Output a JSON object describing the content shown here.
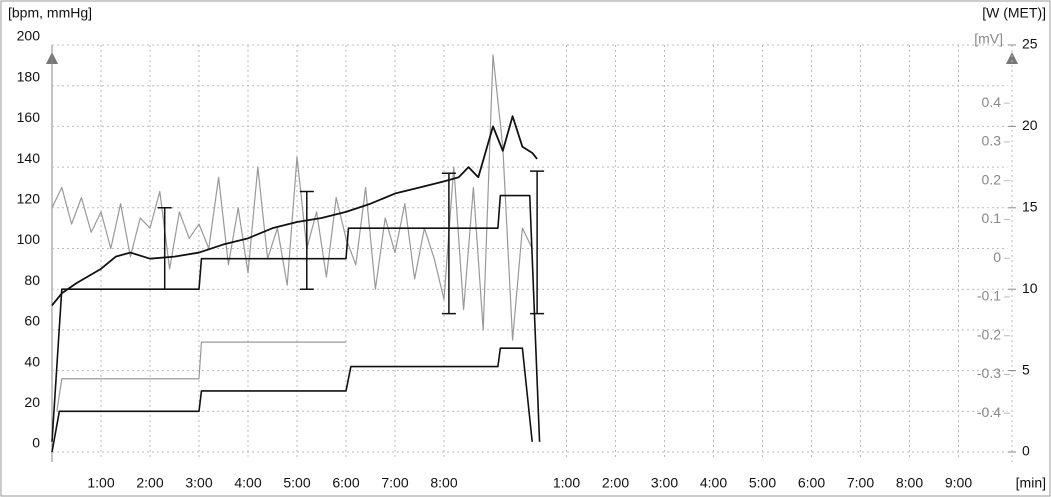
{
  "chart_data": {
    "type": "line",
    "y_label": "[bpm, mmHg]",
    "y2_label": "[W (MET)]",
    "y3_label": "[mV]",
    "x_label": "[min]",
    "xlim": [
      0,
      19.5
    ],
    "xticks": [
      {
        "value": 1,
        "label": "1:00"
      },
      {
        "value": 2,
        "label": "2:00"
      },
      {
        "value": 3,
        "label": "3:00"
      },
      {
        "value": 4,
        "label": "4:00"
      },
      {
        "value": 5,
        "label": "5:00"
      },
      {
        "value": 6,
        "label": "6:00"
      },
      {
        "value": 7,
        "label": "7:00"
      },
      {
        "value": 8,
        "label": "8:00"
      },
      {
        "value": 10.5,
        "label": "1:00"
      },
      {
        "value": 11.5,
        "label": "2:00"
      },
      {
        "value": 12.5,
        "label": "3:00"
      },
      {
        "value": 13.5,
        "label": "4:00"
      },
      {
        "value": 14.5,
        "label": "5:00"
      },
      {
        "value": 15.5,
        "label": "6:00"
      },
      {
        "value": 16.5,
        "label": "7:00"
      },
      {
        "value": 17.5,
        "label": "8:00"
      },
      {
        "value": 18.5,
        "label": "9:00"
      }
    ],
    "ylim": [
      0,
      200
    ],
    "yticks": [
      0,
      20,
      40,
      60,
      80,
      100,
      120,
      140,
      160,
      180,
      200
    ],
    "y2lim": [
      0,
      25
    ],
    "y2ticks": [
      0,
      5,
      10,
      15,
      20,
      25
    ],
    "y3lim": [
      -0.5,
      0.55
    ],
    "y3ticks": [
      -0.4,
      -0.3,
      -0.2,
      -0.1,
      0,
      0.1,
      0.2,
      0.3,
      0.4
    ],
    "grid": true,
    "series": [
      {
        "color": "#999999",
        "width": 1.2,
        "x": [
          0,
          0.2,
          0.4,
          0.6,
          0.8,
          1,
          1.2,
          1.4,
          1.6,
          1.8,
          2,
          2.2,
          2.4,
          2.6,
          2.8,
          3,
          3.2,
          3.4,
          3.6,
          3.8,
          4,
          4.2,
          4.4,
          4.6,
          4.8,
          5,
          5.2,
          5.4,
          5.6,
          5.8,
          6,
          6.2,
          6.4,
          6.6,
          6.8,
          7,
          7.2,
          7.4,
          7.6,
          7.8,
          8,
          8.2,
          8.4,
          8.6,
          8.8,
          9,
          9.2,
          9.4,
          9.6,
          9.8
        ],
        "values": [
          120,
          130,
          112,
          125,
          108,
          118,
          100,
          122,
          96,
          115,
          110,
          128,
          90,
          118,
          105,
          112,
          100,
          135,
          92,
          120,
          88,
          140,
          95,
          110,
          82,
          145,
          100,
          118,
          86,
          125,
          105,
          92,
          130,
          80,
          115,
          98,
          122,
          85,
          110,
          95,
          75,
          140,
          70,
          130,
          60,
          195,
          150,
          55,
          110,
          100
        ]
      },
      {
        "color": "#999999",
        "width": 1.2,
        "x": [
          0.1,
          0.2,
          3,
          3.05,
          6
        ],
        "values": [
          20,
          36,
          36,
          54,
          54
        ]
      },
      {
        "color": "#111111",
        "width": 1.6,
        "x": [
          0,
          0.15,
          3,
          3.05,
          6,
          6.1,
          9.1,
          9.15,
          9.6,
          9.8
        ],
        "values": [
          0,
          20,
          20,
          30,
          30,
          42,
          42,
          51,
          51,
          5
        ]
      },
      {
        "color": "#111111",
        "width": 1.6,
        "x": [
          0,
          0.2,
          3,
          3.05,
          6,
          6.05,
          9.1,
          9.15,
          9.75,
          9.95
        ],
        "values": [
          5,
          80,
          80,
          95,
          95,
          110,
          110,
          126,
          126,
          5
        ]
      },
      {
        "color": "#111111",
        "width": 1.8,
        "x": [
          0,
          0.2,
          0.5,
          1,
          1.3,
          1.6,
          2,
          2.5,
          3,
          3.5,
          4,
          4.5,
          5,
          5.5,
          6,
          6.5,
          7,
          7.5,
          8,
          8.3,
          8.5,
          8.7,
          9,
          9.2,
          9.4,
          9.6,
          9.8,
          9.9
        ],
        "values": [
          72,
          78,
          83,
          90,
          96,
          98,
          95,
          96,
          98,
          102,
          105,
          110,
          113,
          115,
          118,
          122,
          127,
          130,
          133,
          135,
          140,
          135,
          160,
          148,
          165,
          150,
          147,
          144
        ]
      },
      {
        "type": "range",
        "color": "#111111",
        "x": [
          2.3,
          5.2,
          8.1,
          9.9
        ],
        "low": [
          80,
          80,
          68,
          68
        ],
        "high": [
          120,
          128,
          137,
          138
        ]
      }
    ]
  }
}
